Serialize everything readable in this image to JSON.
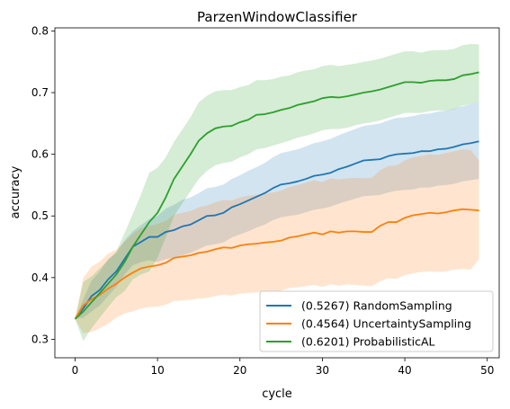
{
  "chart_data": {
    "type": "line",
    "title": "ParzenWindowClassifier",
    "xlabel": "cycle",
    "ylabel": "accuracy",
    "xlim": [
      -2.45,
      51.45
    ],
    "ylim": [
      0.27,
      0.805
    ],
    "xticks": [
      0,
      10,
      20,
      30,
      40,
      50
    ],
    "yticks": [
      0.3,
      0.4,
      0.5,
      0.6,
      0.7,
      0.8
    ],
    "ytick_labels": [
      "0.3",
      "0.4",
      "0.5",
      "0.6",
      "0.7",
      "0.8"
    ],
    "grid": false,
    "legend_position": "lower-right",
    "x": [
      0,
      1,
      2,
      3,
      4,
      5,
      6,
      7,
      8,
      9,
      10,
      11,
      12,
      13,
      14,
      15,
      16,
      17,
      18,
      19,
      20,
      21,
      22,
      23,
      24,
      25,
      26,
      27,
      28,
      29,
      30,
      31,
      32,
      33,
      34,
      35,
      36,
      37,
      38,
      39,
      40,
      41,
      42,
      43,
      44,
      45,
      46,
      47,
      48,
      49
    ],
    "series": [
      {
        "name": "(0.5267) RandomSampling",
        "color": "#1f77b4",
        "band_color": "rgba(31,119,180,0.2)",
        "values": [
          0.333,
          0.35,
          0.37,
          0.38,
          0.397,
          0.41,
          0.43,
          0.45,
          0.458,
          0.466,
          0.466,
          0.474,
          0.477,
          0.483,
          0.486,
          0.493,
          0.5,
          0.501,
          0.505,
          0.514,
          0.519,
          0.525,
          0.531,
          0.537,
          0.545,
          0.551,
          0.553,
          0.556,
          0.56,
          0.565,
          0.567,
          0.57,
          0.576,
          0.58,
          0.585,
          0.59,
          0.591,
          0.592,
          0.597,
          0.6,
          0.601,
          0.602,
          0.605,
          0.605,
          0.608,
          0.609,
          0.612,
          0.616,
          0.618,
          0.621
        ],
        "lower": [
          0.333,
          0.335,
          0.345,
          0.355,
          0.37,
          0.385,
          0.405,
          0.42,
          0.425,
          0.428,
          0.425,
          0.43,
          0.432,
          0.436,
          0.44,
          0.446,
          0.452,
          0.454,
          0.457,
          0.465,
          0.47,
          0.475,
          0.481,
          0.486,
          0.493,
          0.498,
          0.5,
          0.502,
          0.506,
          0.51,
          0.512,
          0.515,
          0.52,
          0.524,
          0.528,
          0.532,
          0.533,
          0.534,
          0.538,
          0.541,
          0.542,
          0.543,
          0.546,
          0.546,
          0.549,
          0.55,
          0.552,
          0.556,
          0.558,
          0.56
        ],
        "upper": [
          0.333,
          0.365,
          0.395,
          0.41,
          0.43,
          0.44,
          0.46,
          0.475,
          0.485,
          0.495,
          0.5,
          0.512,
          0.518,
          0.526,
          0.53,
          0.537,
          0.545,
          0.547,
          0.551,
          0.56,
          0.566,
          0.573,
          0.579,
          0.586,
          0.595,
          0.602,
          0.605,
          0.608,
          0.613,
          0.618,
          0.621,
          0.625,
          0.631,
          0.636,
          0.641,
          0.646,
          0.648,
          0.65,
          0.655,
          0.659,
          0.66,
          0.662,
          0.665,
          0.666,
          0.669,
          0.671,
          0.674,
          0.678,
          0.681,
          0.684
        ]
      },
      {
        "name": "(0.4564) UncertaintySampling",
        "color": "#ff7f0e",
        "band_color": "rgba(255,127,14,0.2)",
        "values": [
          0.333,
          0.355,
          0.365,
          0.372,
          0.382,
          0.39,
          0.4,
          0.408,
          0.415,
          0.418,
          0.42,
          0.424,
          0.432,
          0.434,
          0.436,
          0.44,
          0.442,
          0.446,
          0.449,
          0.448,
          0.452,
          0.454,
          0.455,
          0.457,
          0.458,
          0.46,
          0.465,
          0.467,
          0.47,
          0.473,
          0.47,
          0.475,
          0.473,
          0.475,
          0.475,
          0.474,
          0.474,
          0.484,
          0.49,
          0.49,
          0.497,
          0.501,
          0.503,
          0.505,
          0.504,
          0.506,
          0.509,
          0.511,
          0.51,
          0.509
        ],
        "lower": [
          0.333,
          0.31,
          0.312,
          0.318,
          0.325,
          0.335,
          0.342,
          0.345,
          0.35,
          0.352,
          0.353,
          0.356,
          0.362,
          0.363,
          0.364,
          0.366,
          0.367,
          0.37,
          0.372,
          0.371,
          0.374,
          0.375,
          0.376,
          0.377,
          0.378,
          0.379,
          0.383,
          0.384,
          0.386,
          0.388,
          0.385,
          0.389,
          0.387,
          0.389,
          0.388,
          0.387,
          0.386,
          0.394,
          0.399,
          0.398,
          0.404,
          0.407,
          0.409,
          0.41,
          0.409,
          0.41,
          0.413,
          0.414,
          0.413,
          0.43
        ],
        "upper": [
          0.333,
          0.4,
          0.418,
          0.426,
          0.439,
          0.445,
          0.458,
          0.471,
          0.48,
          0.484,
          0.487,
          0.492,
          0.502,
          0.505,
          0.508,
          0.514,
          0.517,
          0.522,
          0.526,
          0.525,
          0.53,
          0.533,
          0.534,
          0.537,
          0.538,
          0.541,
          0.547,
          0.55,
          0.554,
          0.558,
          0.555,
          0.561,
          0.559,
          0.561,
          0.562,
          0.561,
          0.562,
          0.574,
          0.581,
          0.582,
          0.59,
          0.595,
          0.597,
          0.6,
          0.599,
          0.602,
          0.605,
          0.608,
          0.607,
          0.59
        ]
      },
      {
        "name": "(0.6201) ProbabilisticAL",
        "color": "#2ca02c",
        "band_color": "rgba(44,160,44,0.2)",
        "values": [
          0.333,
          0.345,
          0.36,
          0.375,
          0.39,
          0.405,
          0.425,
          0.45,
          0.47,
          0.49,
          0.505,
          0.53,
          0.56,
          0.58,
          0.6,
          0.622,
          0.634,
          0.642,
          0.645,
          0.646,
          0.652,
          0.656,
          0.664,
          0.665,
          0.668,
          0.672,
          0.675,
          0.68,
          0.683,
          0.686,
          0.691,
          0.693,
          0.692,
          0.694,
          0.697,
          0.7,
          0.702,
          0.705,
          0.709,
          0.713,
          0.717,
          0.717,
          0.716,
          0.719,
          0.72,
          0.72,
          0.722,
          0.728,
          0.73,
          0.733
        ],
        "lower": [
          0.333,
          0.297,
          0.318,
          0.335,
          0.352,
          0.368,
          0.378,
          0.397,
          0.405,
          0.41,
          0.432,
          0.465,
          0.5,
          0.52,
          0.54,
          0.56,
          0.573,
          0.582,
          0.586,
          0.588,
          0.595,
          0.6,
          0.608,
          0.61,
          0.614,
          0.618,
          0.622,
          0.627,
          0.63,
          0.634,
          0.639,
          0.641,
          0.641,
          0.643,
          0.647,
          0.65,
          0.652,
          0.655,
          0.659,
          0.663,
          0.667,
          0.667,
          0.667,
          0.67,
          0.671,
          0.671,
          0.673,
          0.679,
          0.681,
          0.684
        ],
        "upper": [
          0.333,
          0.393,
          0.402,
          0.415,
          0.428,
          0.442,
          0.472,
          0.503,
          0.535,
          0.57,
          0.578,
          0.595,
          0.62,
          0.64,
          0.66,
          0.684,
          0.695,
          0.702,
          0.704,
          0.704,
          0.709,
          0.712,
          0.72,
          0.72,
          0.722,
          0.726,
          0.728,
          0.733,
          0.736,
          0.738,
          0.743,
          0.745,
          0.743,
          0.745,
          0.747,
          0.75,
          0.752,
          0.755,
          0.759,
          0.763,
          0.767,
          0.767,
          0.765,
          0.768,
          0.769,
          0.769,
          0.771,
          0.777,
          0.779,
          0.778
        ]
      }
    ]
  }
}
